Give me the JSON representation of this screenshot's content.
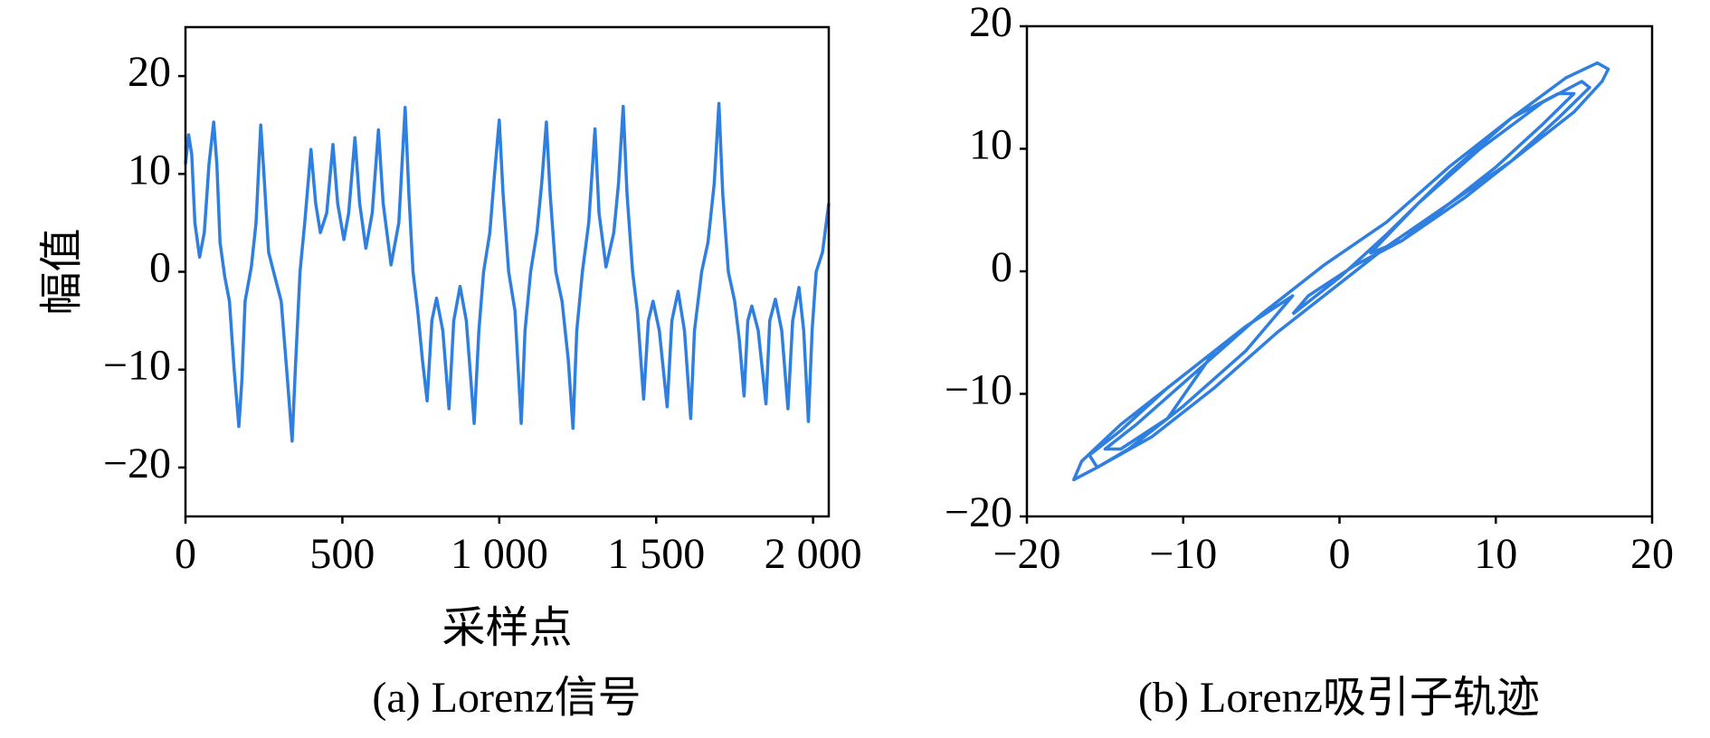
{
  "chart_data": [
    {
      "type": "line",
      "title": "(a) Lorenz信号",
      "xlabel": "采样点",
      "ylabel": "幅值",
      "xlim": [
        0,
        2050
      ],
      "ylim": [
        -25,
        25
      ],
      "xticks": [
        0,
        500,
        {
          "value": 1000,
          "label": "1 000"
        },
        {
          "value": 1500,
          "label": "1 500"
        },
        {
          "value": 2000,
          "label": "2 000"
        }
      ],
      "yticks": [
        {
          "value": -20,
          "label": "−20"
        },
        {
          "value": -10,
          "label": "−10"
        },
        0,
        10,
        20
      ],
      "series": [
        {
          "color": "#2f7fe0",
          "x": [
            0,
            10,
            20,
            30,
            45,
            60,
            75,
            90,
            100,
            110,
            125,
            140,
            155,
            170,
            180,
            190,
            210,
            225,
            240,
            250,
            265,
            285,
            305,
            325,
            340,
            350,
            365,
            380,
            400,
            415,
            430,
            450,
            470,
            485,
            505,
            520,
            540,
            555,
            575,
            595,
            615,
            630,
            655,
            680,
            700,
            712,
            725,
            740,
            755,
            770,
            785,
            800,
            820,
            840,
            855,
            875,
            895,
            920,
            935,
            950,
            970,
            985,
            1000,
            1012,
            1030,
            1050,
            1070,
            1082,
            1100,
            1120,
            1135,
            1150,
            1162,
            1180,
            1200,
            1220,
            1235,
            1247,
            1265,
            1285,
            1305,
            1318,
            1340,
            1365,
            1380,
            1395,
            1407,
            1425,
            1440,
            1460,
            1475,
            1490,
            1510,
            1535,
            1550,
            1570,
            1590,
            1610,
            1622,
            1645,
            1665,
            1685,
            1700,
            1712,
            1730,
            1750,
            1765,
            1780,
            1792,
            1805,
            1825,
            1850,
            1862,
            1880,
            1900,
            1920,
            1935,
            1955,
            1970,
            1985,
            1997,
            2010,
            2030,
            2050
          ],
          "values": [
            11,
            14,
            12,
            5,
            1.5,
            4,
            11,
            15.3,
            11,
            3,
            -0.5,
            -3,
            -10,
            -15.8,
            -11,
            -3,
            0.5,
            5,
            15,
            10,
            2,
            -0.5,
            -3,
            -11,
            -17.3,
            -10,
            0,
            5,
            12.5,
            7,
            4,
            6,
            13,
            7,
            3.3,
            6,
            13.7,
            7,
            2.4,
            6,
            14.5,
            7,
            0.7,
            5,
            16.8,
            8,
            0,
            -4,
            -9,
            -13.2,
            -5,
            -2.7,
            -6,
            -14,
            -5,
            -1.5,
            -5,
            -15.5,
            -6,
            0,
            4,
            10,
            15.5,
            8,
            0,
            -4,
            -15.5,
            -6,
            0,
            4,
            9,
            15.3,
            8,
            0,
            -3,
            -9,
            -16,
            -6,
            0,
            5,
            14.6,
            6,
            0.5,
            4,
            9,
            16.9,
            8,
            0,
            -4,
            -13,
            -5,
            -3,
            -6,
            -13.8,
            -5,
            -2,
            -6,
            -15,
            -6,
            0,
            3,
            9,
            17.2,
            8,
            0,
            -3,
            -7,
            -12.7,
            -5,
            -3.5,
            -6,
            -13.5,
            -5,
            -2.8,
            -6,
            -14,
            -5,
            -1.6,
            -6,
            -15.3,
            -6,
            0,
            2,
            7
          ]
        }
      ]
    },
    {
      "type": "line",
      "title": "(b) Lorenz吸引子轨迹",
      "xlim": [
        -20,
        20
      ],
      "ylim": [
        -20,
        20
      ],
      "xticks": [
        {
          "value": -20,
          "label": "−20"
        },
        {
          "value": -10,
          "label": "−10"
        },
        0,
        10,
        20
      ],
      "yticks": [
        {
          "value": -20,
          "label": "−20"
        },
        {
          "value": -10,
          "label": "−10"
        },
        0,
        10,
        20
      ],
      "series": [
        {
          "color": "#2f7fe0",
          "x": [
            -3,
            0,
            3,
            7,
            11,
            14.5,
            16.5,
            17.2,
            16.8,
            15,
            12,
            8,
            4,
            2,
            5,
            9,
            13,
            15.5,
            16,
            14,
            11,
            7,
            3,
            0,
            -4,
            -8,
            -12,
            -15.5,
            -17,
            -16.5,
            -14,
            -10,
            -6,
            -3,
            -6,
            -10,
            -13.5,
            -15.5,
            -16,
            -14,
            -11,
            -8,
            -11,
            -14,
            -15,
            -13,
            -9,
            -5,
            -1,
            3,
            7,
            11,
            14,
            15,
            13,
            10,
            7,
            4,
            1,
            -2,
            -3
          ],
          "values": [
            -3.5,
            -0.5,
            3,
            8,
            12.5,
            15.8,
            17,
            16.5,
            15.5,
            13,
            10,
            6,
            2.5,
            1.5,
            5.5,
            10,
            13.8,
            15.5,
            15,
            12.5,
            9,
            5.5,
            2,
            -1,
            -5,
            -9.5,
            -13.5,
            -16,
            -17,
            -15.5,
            -12.5,
            -8.5,
            -4.5,
            -2,
            -6.5,
            -11,
            -14.5,
            -16,
            -15,
            -13,
            -9.5,
            -6.5,
            -12,
            -14.5,
            -14.5,
            -12.5,
            -8,
            -3.5,
            0.5,
            4,
            8.5,
            12.5,
            14.5,
            14.5,
            12,
            8.5,
            5.5,
            2.5,
            0.5,
            -2,
            -3.5
          ]
        }
      ]
    }
  ]
}
